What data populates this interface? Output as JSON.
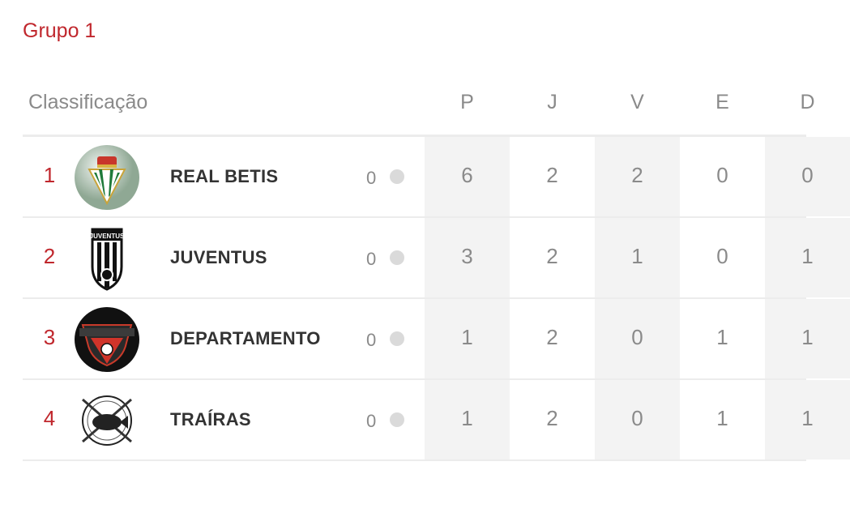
{
  "group_title": "Grupo 1",
  "table": {
    "header": {
      "label": "Classificação",
      "columns": [
        "P",
        "J",
        "V",
        "E",
        "D"
      ]
    },
    "rows": [
      {
        "position": "1",
        "team": "REAL BETIS",
        "logo": "real-betis-crest",
        "extra": "0",
        "stats": [
          "6",
          "2",
          "2",
          "0",
          "0"
        ]
      },
      {
        "position": "2",
        "team": "JUVENTUS",
        "logo": "juventus-crest",
        "extra": "0",
        "stats": [
          "3",
          "2",
          "1",
          "0",
          "1"
        ]
      },
      {
        "position": "3",
        "team": "DEPARTAMENTO",
        "logo": "departamento-crest",
        "extra": "0",
        "stats": [
          "1",
          "2",
          "0",
          "1",
          "1"
        ]
      },
      {
        "position": "4",
        "team": "TRAÍRAS",
        "logo": "trairas-crest",
        "extra": "0",
        "stats": [
          "1",
          "2",
          "0",
          "1",
          "1"
        ]
      }
    ]
  },
  "colors": {
    "accent": "#c0272d",
    "muted_text": "#8a8a8a",
    "shade": "#f3f3f3",
    "dot": "#dadada"
  }
}
